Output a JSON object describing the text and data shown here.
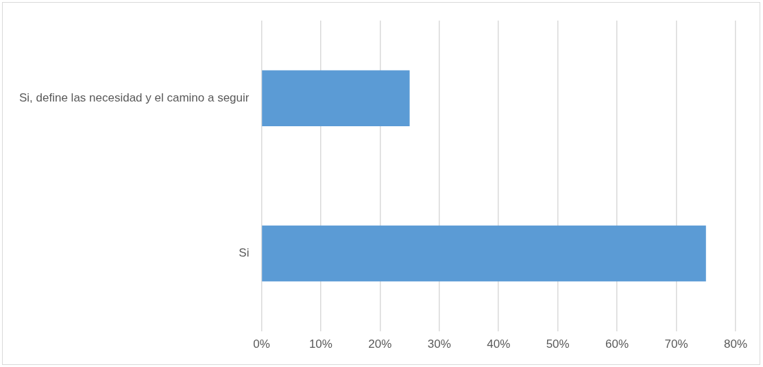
{
  "chart_data": {
    "type": "bar",
    "orientation": "horizontal",
    "categories": [
      "Si, define las necesidad y el camino a seguir",
      "Si"
    ],
    "values": [
      25,
      75
    ],
    "color": "#5b9bd5",
    "xlim": [
      0,
      80
    ],
    "xticks": [
      {
        "value": 0,
        "label": "0%"
      },
      {
        "value": 10,
        "label": "10%"
      },
      {
        "value": 20,
        "label": "20%"
      },
      {
        "value": 30,
        "label": "30%"
      },
      {
        "value": 40,
        "label": "40%"
      },
      {
        "value": 50,
        "label": "50%"
      },
      {
        "value": 60,
        "label": "60%"
      },
      {
        "value": 70,
        "label": "70%"
      },
      {
        "value": 80,
        "label": "80%"
      }
    ],
    "grid": "x",
    "legend": false
  }
}
